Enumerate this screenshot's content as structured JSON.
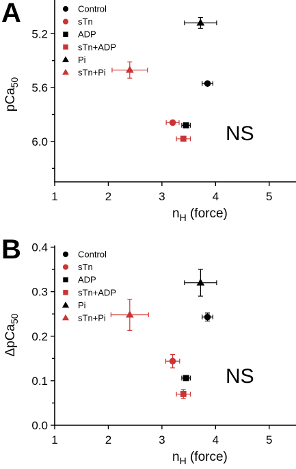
{
  "colors": {
    "black": "#000000",
    "red": "#cc3333"
  },
  "marker_names": [
    "circle",
    "square",
    "triangle"
  ],
  "chart_data": [
    {
      "type": "scatter",
      "panel_label": "A",
      "xlabel_main": "n",
      "xlabel_sub": "H",
      "xlabel_tail": " (force)",
      "ylabel_main": "pCa",
      "ylabel_sub": "50",
      "xlim": [
        1,
        5.5
      ],
      "ylim": [
        6.3,
        4.95
      ],
      "y_inverted": true,
      "x_ticks": [
        1,
        2,
        3,
        4,
        5
      ],
      "x_tick_labels": [
        "1",
        "2",
        "3",
        "4",
        "5"
      ],
      "y_ticks": [
        5.2,
        5.6,
        6.0
      ],
      "y_tick_labels": [
        "5.2",
        "5.6",
        "6.0"
      ],
      "y_minor_ticks": [
        5.4,
        5.8,
        6.2
      ],
      "legend_placement": "top-left",
      "annotation": "NS",
      "series": [
        {
          "name": "Control",
          "marker": "circle",
          "color": "black",
          "x": 3.85,
          "y": 5.57,
          "xerr": 0.1,
          "yerr": 0.0
        },
        {
          "name": "sTn",
          "marker": "circle",
          "color": "red",
          "x": 3.2,
          "y": 5.86,
          "xerr": 0.12,
          "yerr": 0.0
        },
        {
          "name": "ADP",
          "marker": "square",
          "color": "black",
          "x": 3.45,
          "y": 5.88,
          "xerr": 0.08,
          "yerr": 0.0
        },
        {
          "name": "sTn+ADP",
          "marker": "square",
          "color": "red",
          "x": 3.4,
          "y": 5.98,
          "xerr": 0.13,
          "yerr": 0.0
        },
        {
          "name": "Pi",
          "marker": "triangle",
          "color": "black",
          "x": 3.72,
          "y": 5.12,
          "xerr": 0.3,
          "yerr": 0.04
        },
        {
          "name": "sTn+Pi",
          "marker": "triangle",
          "color": "red",
          "x": 2.4,
          "y": 5.47,
          "xerr": 0.33,
          "yerr": 0.06
        }
      ]
    },
    {
      "type": "scatter",
      "panel_label": "B",
      "xlabel_main": "n",
      "xlabel_sub": "H",
      "xlabel_tail": " (force)",
      "ylabel_main": "ΔpCa",
      "ylabel_sub": "50",
      "xlim": [
        1,
        5.5
      ],
      "ylim": [
        0.0,
        0.4
      ],
      "y_inverted": false,
      "x_ticks": [
        1,
        2,
        3,
        4,
        5
      ],
      "x_tick_labels": [
        "1",
        "2",
        "3",
        "4",
        "5"
      ],
      "y_ticks": [
        0.0,
        0.1,
        0.2,
        0.3,
        0.4
      ],
      "y_tick_labels": [
        "0.0",
        "0.1",
        "0.2",
        "0.3",
        "0.4"
      ],
      "y_minor_ticks": [
        0.05,
        0.15,
        0.25,
        0.35
      ],
      "legend_placement": "top-left",
      "annotation": "NS",
      "series": [
        {
          "name": "Control",
          "marker": "circle",
          "color": "black",
          "x": 3.85,
          "y": 0.243,
          "xerr": 0.1,
          "yerr": 0.009
        },
        {
          "name": "sTn",
          "marker": "circle",
          "color": "red",
          "x": 3.2,
          "y": 0.144,
          "xerr": 0.13,
          "yerr": 0.015
        },
        {
          "name": "ADP",
          "marker": "square",
          "color": "black",
          "x": 3.45,
          "y": 0.106,
          "xerr": 0.08,
          "yerr": 0.0
        },
        {
          "name": "sTn+ADP",
          "marker": "square",
          "color": "red",
          "x": 3.4,
          "y": 0.07,
          "xerr": 0.13,
          "yerr": 0.01
        },
        {
          "name": "Pi",
          "marker": "triangle",
          "color": "black",
          "x": 3.72,
          "y": 0.32,
          "xerr": 0.3,
          "yerr": 0.03
        },
        {
          "name": "sTn+Pi",
          "marker": "triangle",
          "color": "red",
          "x": 2.4,
          "y": 0.248,
          "xerr": 0.35,
          "yerr": 0.035
        }
      ]
    }
  ]
}
